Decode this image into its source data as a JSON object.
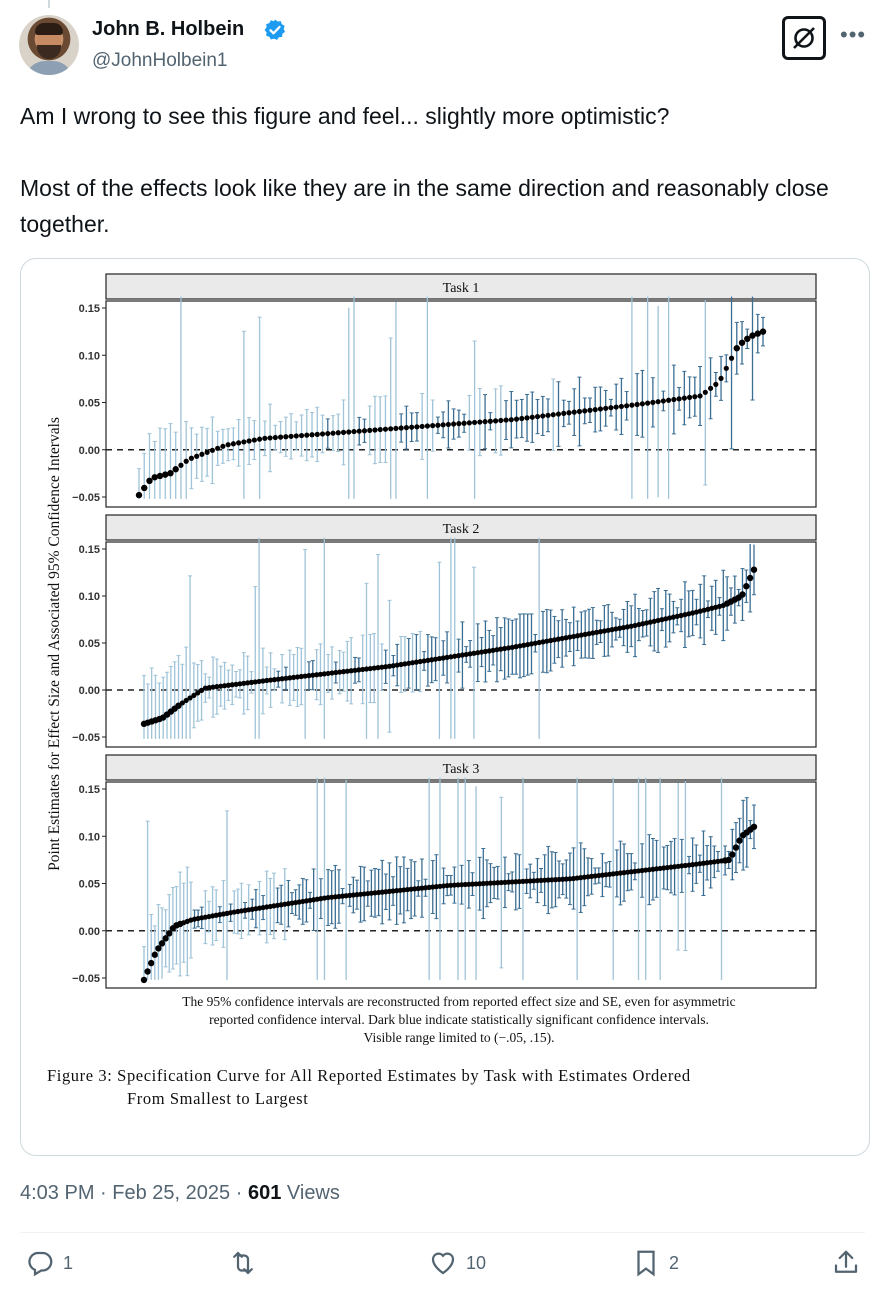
{
  "tweet": {
    "author_name": "John B. Holbein",
    "author_handle": "@JohnHolbein1",
    "text_line1": "Am I wrong to see this figure and feel... slightly more optimistic?",
    "text_line2": "Most of the effects look like they are in the same direction and reasonably close together.",
    "time": "4:03 PM",
    "sep1": "·",
    "date": "Feb 25, 2025",
    "sep2": "·",
    "views_count": "601",
    "views_label": "Views"
  },
  "actions": {
    "reply_count": "1",
    "retweet_count": "",
    "like_count": "10",
    "bookmark_count": "2"
  },
  "icons": {
    "verified": "verified-badge-icon",
    "grok": "grok-icon",
    "more": "more-icon",
    "reply": "reply-icon",
    "retweet": "retweet-icon",
    "like": "heart-icon",
    "bookmark": "bookmark-icon",
    "share": "share-icon"
  },
  "colors": {
    "verified": "#1d9bf0",
    "muted_text": "#536471",
    "ci_light": "#9fc3d8",
    "ci_dark": "#3b6e93"
  },
  "chart_data": {
    "type": "scatter",
    "ylabel": "Point Estimates for Effect Size and Associated 95% Confidence Intervals",
    "ylim": [
      -0.05,
      0.15
    ],
    "yticks": [
      "0.15",
      "0.10",
      "0.05",
      "0.00",
      "−0.05"
    ],
    "reference_line": 0,
    "panels": [
      {
        "title": "Task 1",
        "n": 120,
        "curve": [
          [
            0,
            -0.048
          ],
          [
            0.02,
            -0.03
          ],
          [
            0.05,
            -0.025
          ],
          [
            0.08,
            -0.01
          ],
          [
            0.14,
            0.005
          ],
          [
            0.2,
            0.012
          ],
          [
            0.4,
            0.022
          ],
          [
            0.6,
            0.032
          ],
          [
            0.8,
            0.048
          ],
          [
            0.9,
            0.057
          ],
          [
            0.93,
            0.072
          ],
          [
            0.96,
            0.11
          ],
          [
            0.98,
            0.12
          ],
          [
            1,
            0.125
          ]
        ]
      },
      {
        "title": "Task 2",
        "n": 160,
        "curve": [
          [
            0,
            -0.036
          ],
          [
            0.03,
            -0.03
          ],
          [
            0.06,
            -0.015
          ],
          [
            0.1,
            0.002
          ],
          [
            0.2,
            0.01
          ],
          [
            0.4,
            0.025
          ],
          [
            0.6,
            0.045
          ],
          [
            0.8,
            0.068
          ],
          [
            0.9,
            0.082
          ],
          [
            0.95,
            0.09
          ],
          [
            0.98,
            0.1
          ],
          [
            1,
            0.128
          ]
        ]
      },
      {
        "title": "Task 3",
        "n": 170,
        "curve": [
          [
            0,
            -0.052
          ],
          [
            0.02,
            -0.022
          ],
          [
            0.05,
            0.005
          ],
          [
            0.08,
            0.012
          ],
          [
            0.15,
            0.02
          ],
          [
            0.3,
            0.035
          ],
          [
            0.5,
            0.048
          ],
          [
            0.7,
            0.055
          ],
          [
            0.9,
            0.07
          ],
          [
            0.96,
            0.075
          ],
          [
            0.98,
            0.1
          ],
          [
            1,
            0.11
          ]
        ]
      }
    ],
    "note_line1": "The 95% confidence intervals are reconstructed from reported effect size and SE, even for asymmetric",
    "note_line2": "reported confidence interval. Dark blue indicate statistically significant confidence intervals.",
    "note_line3": "Visible range limited to (−.05, .15).",
    "caption_line1": "Figure 3: Specification Curve for All Reported Estimates by Task with Estimates Ordered",
    "caption_line2": "From Smallest to Largest"
  }
}
